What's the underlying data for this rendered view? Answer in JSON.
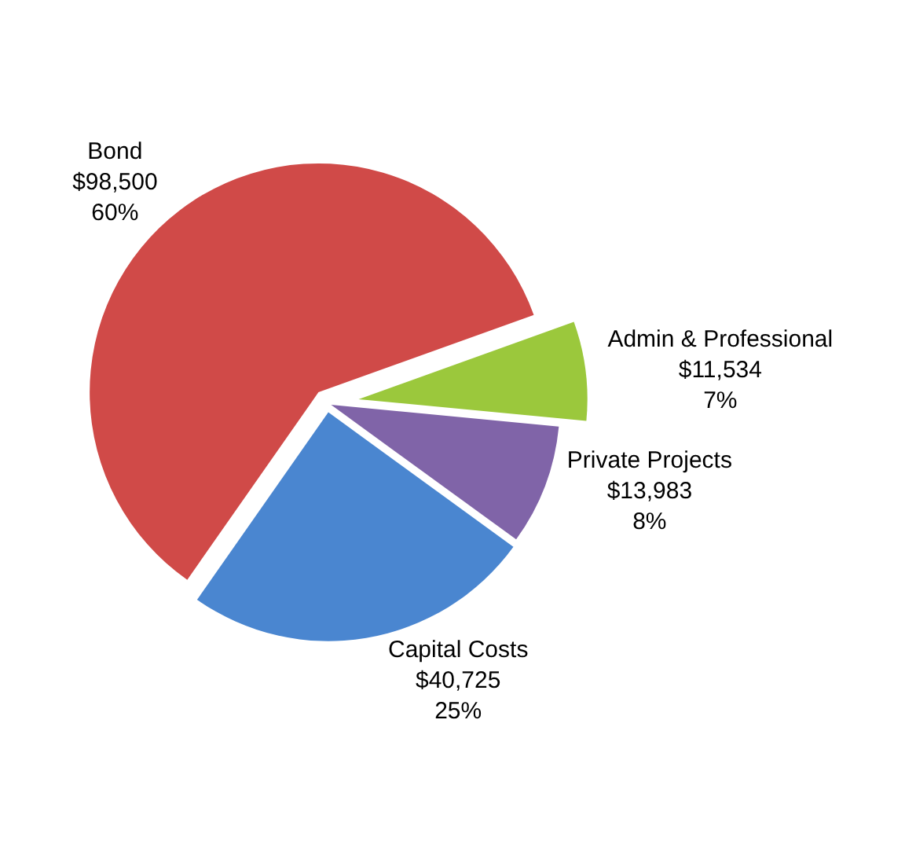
{
  "chart_data": {
    "type": "pie",
    "categories": [
      "Bond",
      "Admin & Professional",
      "Private Projects",
      "Capital Costs"
    ],
    "values": [
      98500,
      11534,
      13983,
      40725
    ],
    "value_labels": [
      "$98,500\n60%",
      "$11,534\n7%",
      "$13,983\n8%",
      "$40,725\n25%"
    ],
    "colors": [
      "#d04a48",
      "#9bc83c",
      "#8064a8",
      "#4a86d0"
    ],
    "legend": false
  }
}
